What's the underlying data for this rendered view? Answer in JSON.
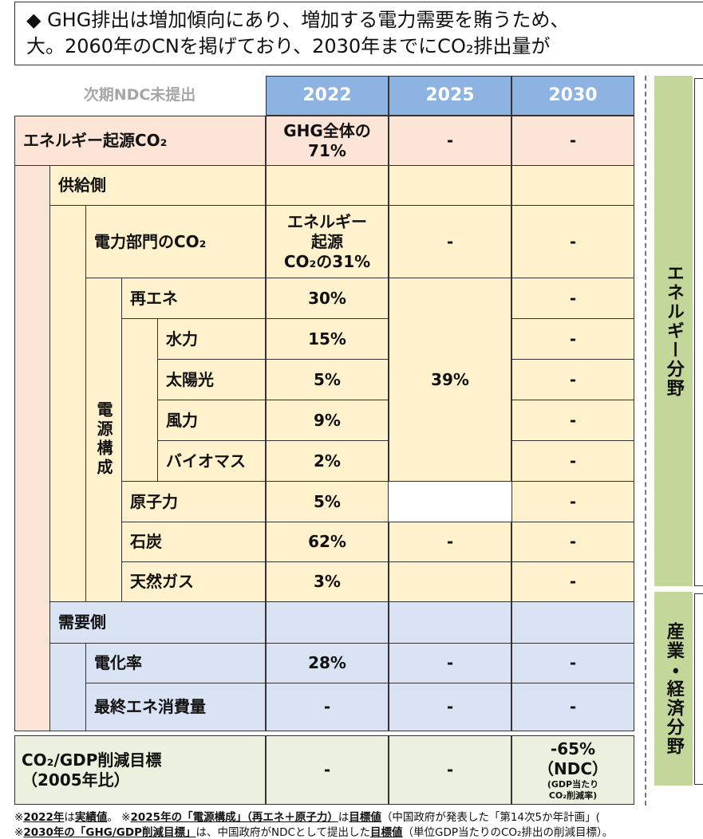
{
  "header": {
    "lines": [
      "◆ GHG排出は増加傾向にあり、増加する電力需要を賄うため、",
      "大。2060年のCNを掲げており、2030年までにCO₂排出量が"
    ]
  },
  "table": {
    "note": "次期NDC未提出",
    "columns": [
      "2022",
      "2025",
      "2030"
    ],
    "group_label": "電源構成",
    "rows": [
      {
        "label": "エネルギー起源CO₂",
        "values": [
          "GHG全体の\n71%",
          "-",
          "-"
        ]
      },
      {
        "label": "供給側",
        "values": [
          null,
          null,
          null
        ]
      },
      {
        "label": "電力部門のCO₂",
        "values": [
          "エネルギー\n起源\nCO₂の31%",
          "-",
          "-"
        ]
      },
      {
        "label": "再エネ",
        "values": [
          "30%",
          "39%",
          "-"
        ]
      },
      {
        "label": "水力",
        "values": [
          "15%",
          null,
          "-"
        ]
      },
      {
        "label": "太陽光",
        "values": [
          "5%",
          null,
          "-"
        ]
      },
      {
        "label": "風力",
        "values": [
          "9%",
          null,
          "-"
        ]
      },
      {
        "label": "バイオマス",
        "values": [
          "2%",
          null,
          "-"
        ]
      },
      {
        "label": "原子力",
        "values": [
          "5%",
          null,
          "-"
        ]
      },
      {
        "label": "石炭",
        "values": [
          "62%",
          "-",
          "-"
        ]
      },
      {
        "label": "天然ガス",
        "values": [
          "3%",
          null,
          "-"
        ]
      },
      {
        "label": "需要側",
        "values": [
          null,
          null,
          null
        ]
      },
      {
        "label": "電化率",
        "values": [
          "28%",
          "-",
          "-"
        ]
      },
      {
        "label": "最終エネ消費量",
        "values": [
          "-",
          "-",
          "-"
        ]
      },
      {
        "label": "CO₂/GDP削減目標\n（2005年比）",
        "values": [
          "-",
          "-",
          "-65%\n（NDC）"
        ],
        "note": "(GDP当たり\nCO₂削減率)"
      }
    ]
  },
  "side_labels": [
    "エネルギー分野",
    "産業・経済分野"
  ],
  "footnotes": [
    [
      "※",
      "2022年",
      "は",
      "実績値",
      "。 ※",
      "2025年の「電源構成」（再エネ＋原子力）",
      "は",
      "目標値",
      "（中国政府が発表した「第14次5か年計画」("
    ],
    [
      "※",
      "2030年の「GHG/GDP削減目標」",
      "は、中国政府がNDCとして提出した",
      "目標値",
      "（単位GDP当たりのCO₂排出の削減目標）。"
    ]
  ]
}
